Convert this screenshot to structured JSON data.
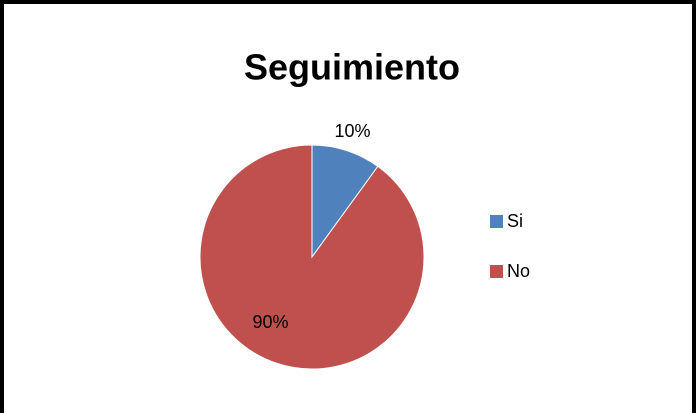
{
  "chart_data": {
    "type": "pie",
    "title": "Seguimiento",
    "categories": [
      "Si",
      "No"
    ],
    "values": [
      10,
      90
    ],
    "value_labels": [
      "10%",
      "90%"
    ],
    "colors": [
      "#4f81bd",
      "#c0504d"
    ],
    "legend": "right"
  }
}
